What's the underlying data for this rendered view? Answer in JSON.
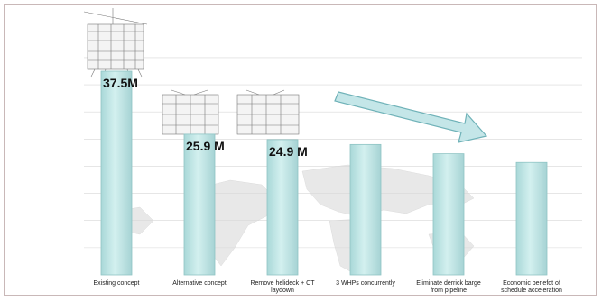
{
  "chart_data": {
    "type": "bar",
    "categories": [
      "Existing concept",
      "Alternative concept",
      "Remove helideck + CT laydown",
      "3 WHPs concurrently",
      "Eliminate derrick barge from pipeline",
      "Economic benefot of schedule acceleration"
    ],
    "values": [
      37.5,
      25.9,
      24.9,
      24.0,
      22.3,
      20.7
    ],
    "data_labels": [
      "37.5M",
      "25.9 M",
      "24.9 M",
      "",
      "",
      ""
    ],
    "ylim": [
      0,
      40
    ],
    "grid": true,
    "title": "",
    "xlabel": "",
    "ylabel": "",
    "colors": {
      "bar": "#bde6e6",
      "bar_edge": "#8fc4c4",
      "arrow": "#bfe4e6",
      "arrow_edge": "#6fb2b8",
      "map": "#e6e6e6",
      "grid": "#d8d8d8"
    }
  }
}
